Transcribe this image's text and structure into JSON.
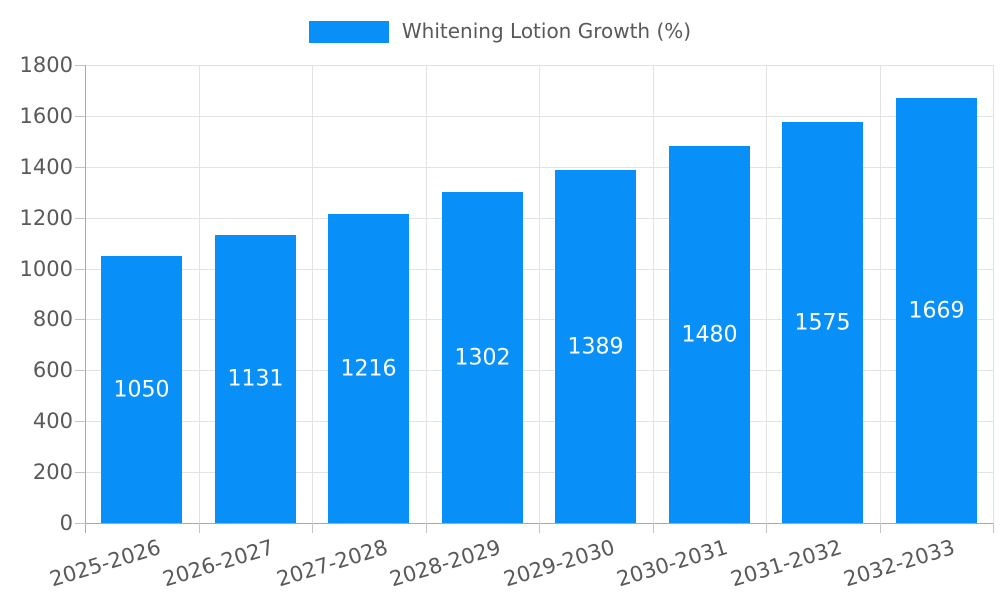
{
  "chart_data": {
    "type": "bar",
    "title": "",
    "legend_label": "Whitening Lotion Growth (%)",
    "legend_position": "top-center",
    "categories": [
      "2025-2026",
      "2026-2027",
      "2027-2028",
      "2028-2029",
      "2029-2030",
      "2030-2031",
      "2031-2032",
      "2032-2033"
    ],
    "values": [
      1050,
      1131,
      1216,
      1302,
      1389,
      1480,
      1575,
      1669
    ],
    "value_labels_shown": true,
    "xlabel": "",
    "ylabel": "",
    "ylim": [
      0,
      1800
    ],
    "yticks": [
      0,
      200,
      400,
      600,
      800,
      1000,
      1200,
      1400,
      1600,
      1800
    ],
    "grid": true,
    "x_label_rotation_deg": 17,
    "colors": {
      "bar": "#0890f8",
      "value_label": "#ffffff",
      "axis_text": "#595959",
      "grid": "#e3e3e3",
      "axis_line": "#a9a9a9",
      "tick": "#c4c4c4",
      "background": "#ffffff"
    }
  }
}
